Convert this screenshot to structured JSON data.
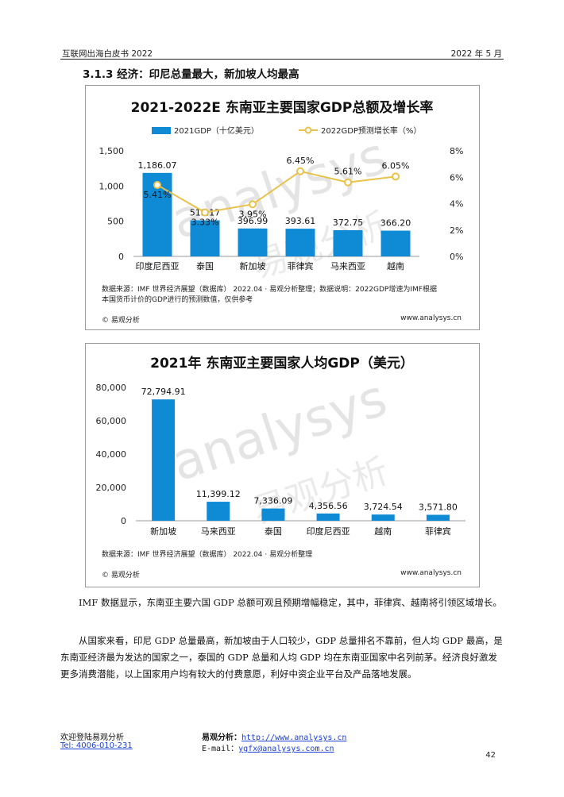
{
  "header": {
    "left": "互联网出海白皮书 2022",
    "right": "2022 年 5 月"
  },
  "section_heading": "3.1.3 经济：印尼总量最大，新加坡人均最高",
  "figure1": {
    "title": "2021-2022E 东南亚主要国家GDP总额及增长率",
    "legend_bar": "2021GDP（十亿美元）",
    "legend_line": "2022GDP预测增长率（%）",
    "source_line1": "数据来源：IMF 世界经济展望（数据库） 2022.04 · 易观分析整理；数据说明：2022GDP增速为IMF根据",
    "source_line2": "本国货币计价的GDP进行的预测数值，仅供参考",
    "copyright": "© 易观分析",
    "url": "www.analysys.cn"
  },
  "figure2": {
    "title": "2021年 东南亚主要国家人均GDP（美元）",
    "source": "数据来源：IMF 世界经济展望（数据库） 2022.04 · 易观分析整理",
    "copyright": "© 易观分析",
    "url": "www.analysys.cn"
  },
  "watermark": {
    "latin": "analysys",
    "cjk": "易观分析"
  },
  "paragraphs": [
    "IMF 数据显示，东南亚主要六国 GDP 总额可观且预期增幅稳定，其中，菲律宾、越南将引领区域增长。",
    "从国家来看，印尼 GDP 总量最高，新加坡由于人口较少，GDP 总量排名不靠前，但人均 GDP 最高，是东南亚经济最为发达的国家之一，泰国的 GDP 总量和人均 GDP 均在东南亚国家中名列前茅。经济良好激发更多消费潜能，以上国家用户均有较大的付费意愿，利好中资企业平台及产品落地发展。"
  ],
  "footer": {
    "welcome": "欢迎登陆易观分析",
    "tel": "Tel: 4006-010-231",
    "site_label": "易观分析：",
    "site_url": "http://www.analysys.cn",
    "email_label": "E-mail：",
    "email": "ygfx@analysys.com.cn",
    "page_number": "42"
  },
  "colors": {
    "bar": "#0f8bd6",
    "line": "#e8c24a",
    "axis_text": "#222222",
    "watermark": "#d6d6d6"
  },
  "chart_data": [
    {
      "type": "bar",
      "title": "2021-2022E 东南亚主要国家GDP总额及增长率",
      "categories": [
        "印度尼西亚",
        "泰国",
        "新加坡",
        "菲律宾",
        "马来西亚",
        "越南"
      ],
      "series": [
        {
          "name": "2021GDP（十亿美元）",
          "type": "bar",
          "axis": "left",
          "values": [
            1186.07,
            513.17,
            396.99,
            393.61,
            372.75,
            366.2
          ],
          "labels": [
            "1,186.07",
            "513.17",
            "396.99",
            "393.61",
            "372.75",
            "366.20"
          ]
        },
        {
          "name": "2022GDP预测增长率（%）",
          "type": "line",
          "axis": "right",
          "values": [
            5.41,
            3.33,
            3.95,
            6.45,
            5.61,
            6.05
          ],
          "labels": [
            "5.41%",
            "3.33%",
            "3.95%",
            "6.45%",
            "5.61%",
            "6.05%"
          ]
        }
      ],
      "ylim": [
        0,
        1500
      ],
      "yticks": [
        0,
        500,
        1000,
        1500
      ],
      "ytick_labels": [
        "0",
        "500",
        "1,000",
        "1,500"
      ],
      "y2lim": [
        0,
        8
      ],
      "y2ticks": [
        0,
        2,
        4,
        6,
        8
      ],
      "y2tick_labels": [
        "0%",
        "2%",
        "4%",
        "6%",
        "8%"
      ],
      "legend": "top",
      "grid": false
    },
    {
      "type": "bar",
      "title": "2021年 东南亚主要国家人均GDP（美元）",
      "categories": [
        "新加坡",
        "马来西亚",
        "泰国",
        "印度尼西亚",
        "越南",
        "菲律宾"
      ],
      "values": [
        72794.91,
        11399.12,
        7336.09,
        4356.56,
        3724.54,
        3571.8
      ],
      "labels": [
        "72,794.91",
        "11,399.12",
        "7,336.09",
        "4,356.56",
        "3,724.54",
        "3,571.80"
      ],
      "ylim": [
        0,
        80000
      ],
      "yticks": [
        0,
        20000,
        40000,
        60000,
        80000
      ],
      "ytick_labels": [
        "0",
        "20,000",
        "40,000",
        "60,000",
        "80,000"
      ],
      "grid": false
    }
  ]
}
